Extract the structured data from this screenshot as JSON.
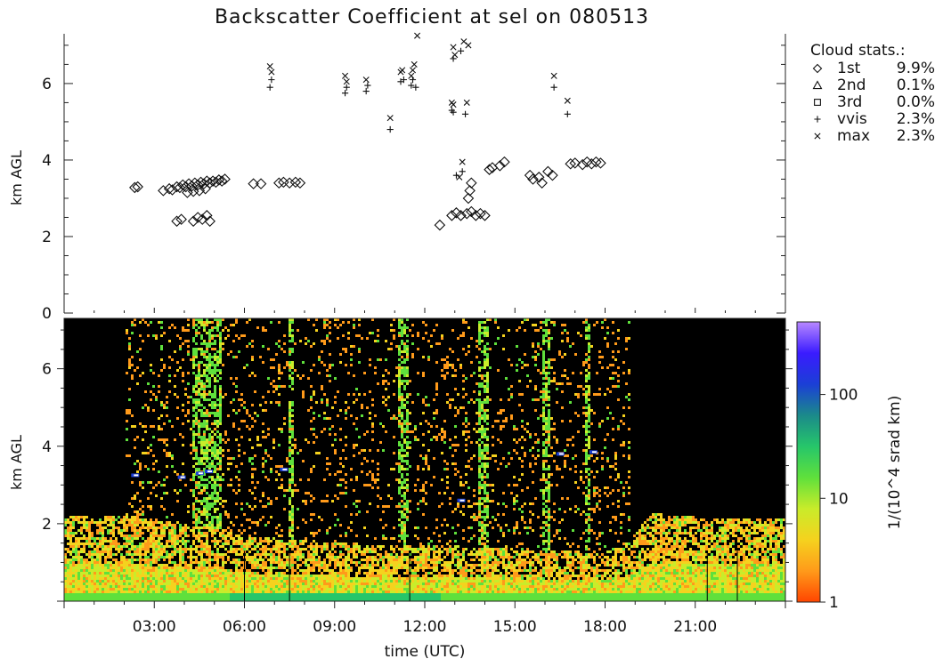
{
  "chart_data": [
    {
      "type": "scatter",
      "title": "Backscatter Coefficient at sel on 080513",
      "ylabel": "km AGL",
      "xlim": [
        0,
        24
      ],
      "ylim": [
        0,
        7.3
      ],
      "y_ticks": [
        {
          "v": 0,
          "label": "0"
        },
        {
          "v": 2,
          "label": "2"
        },
        {
          "v": 4,
          "label": "4"
        },
        {
          "v": 6,
          "label": "6"
        }
      ],
      "legend_title": "Cloud stats.:",
      "legend": [
        {
          "marker": "diamond",
          "name": "1st",
          "value": "9.9%"
        },
        {
          "marker": "triangle",
          "name": "2nd",
          "value": "0.1%"
        },
        {
          "marker": "square",
          "name": "3rd",
          "value": "0.0%"
        },
        {
          "marker": "plus",
          "name": "vvis",
          "value": "2.3%"
        },
        {
          "marker": "x",
          "name": "max",
          "value": "2.3%"
        }
      ],
      "series": [
        {
          "name": "1st",
          "marker": "diamond",
          "points": [
            [
              2.35,
              3.28
            ],
            [
              2.45,
              3.3
            ],
            [
              3.3,
              3.2
            ],
            [
              3.5,
              3.25
            ],
            [
              3.6,
              3.22
            ],
            [
              3.75,
              3.3
            ],
            [
              3.85,
              3.28
            ],
            [
              3.95,
              3.35
            ],
            [
              4.05,
              3.3
            ],
            [
              4.15,
              3.38
            ],
            [
              4.25,
              3.32
            ],
            [
              4.35,
              3.4
            ],
            [
              4.45,
              3.35
            ],
            [
              4.55,
              3.42
            ],
            [
              4.65,
              3.38
            ],
            [
              4.75,
              3.45
            ],
            [
              4.85,
              3.4
            ],
            [
              4.95,
              3.45
            ],
            [
              5.05,
              3.42
            ],
            [
              5.15,
              3.48
            ],
            [
              5.25,
              3.45
            ],
            [
              5.35,
              3.5
            ],
            [
              4.1,
              3.15
            ],
            [
              4.3,
              3.18
            ],
            [
              4.5,
              3.2
            ],
            [
              4.7,
              3.25
            ],
            [
              3.75,
              2.4
            ],
            [
              3.9,
              2.45
            ],
            [
              4.3,
              2.4
            ],
            [
              4.45,
              2.5
            ],
            [
              4.6,
              2.45
            ],
            [
              4.75,
              2.55
            ],
            [
              4.85,
              2.4
            ],
            [
              6.3,
              3.38
            ],
            [
              6.55,
              3.38
            ],
            [
              7.15,
              3.4
            ],
            [
              7.3,
              3.42
            ],
            [
              7.5,
              3.4
            ],
            [
              7.7,
              3.42
            ],
            [
              7.85,
              3.4
            ],
            [
              12.5,
              2.3
            ],
            [
              12.9,
              2.55
            ],
            [
              13.05,
              2.62
            ],
            [
              13.2,
              2.55
            ],
            [
              13.4,
              2.6
            ],
            [
              13.55,
              2.65
            ],
            [
              13.7,
              2.55
            ],
            [
              13.85,
              2.6
            ],
            [
              14.0,
              2.55
            ],
            [
              13.45,
              3.0
            ],
            [
              13.5,
              3.2
            ],
            [
              13.55,
              3.4
            ],
            [
              14.15,
              3.75
            ],
            [
              14.25,
              3.8
            ],
            [
              14.5,
              3.85
            ],
            [
              14.65,
              3.95
            ],
            [
              15.5,
              3.6
            ],
            [
              15.6,
              3.5
            ],
            [
              15.8,
              3.55
            ],
            [
              15.9,
              3.4
            ],
            [
              16.1,
              3.7
            ],
            [
              16.25,
              3.6
            ],
            [
              16.85,
              3.9
            ],
            [
              17.0,
              3.92
            ],
            [
              17.25,
              3.88
            ],
            [
              17.4,
              3.95
            ],
            [
              17.55,
              3.9
            ],
            [
              17.7,
              3.95
            ],
            [
              17.85,
              3.92
            ]
          ]
        },
        {
          "name": "vvis",
          "marker": "plus",
          "points": [
            [
              6.85,
              5.9
            ],
            [
              6.9,
              6.1
            ],
            [
              9.35,
              5.75
            ],
            [
              9.4,
              5.9
            ],
            [
              10.05,
              5.8
            ],
            [
              10.1,
              5.95
            ],
            [
              10.85,
              4.8
            ],
            [
              11.2,
              6.05
            ],
            [
              11.3,
              6.1
            ],
            [
              11.55,
              5.95
            ],
            [
              11.6,
              6.1
            ],
            [
              11.7,
              5.9
            ],
            [
              12.9,
              5.3
            ],
            [
              12.95,
              5.25
            ],
            [
              12.95,
              6.65
            ],
            [
              13.05,
              3.6
            ],
            [
              13.2,
              6.85
            ],
            [
              13.25,
              3.7
            ],
            [
              13.35,
              5.2
            ],
            [
              16.3,
              5.9
            ],
            [
              16.75,
              5.2
            ]
          ]
        },
        {
          "name": "max",
          "marker": "x",
          "points": [
            [
              6.85,
              6.45
            ],
            [
              6.9,
              6.3
            ],
            [
              9.35,
              6.2
            ],
            [
              9.4,
              6.05
            ],
            [
              10.05,
              6.1
            ],
            [
              10.85,
              5.1
            ],
            [
              11.2,
              6.3
            ],
            [
              11.25,
              6.35
            ],
            [
              11.55,
              6.2
            ],
            [
              11.6,
              6.35
            ],
            [
              11.65,
              6.5
            ],
            [
              11.75,
              7.25
            ],
            [
              12.9,
              5.5
            ],
            [
              12.95,
              5.45
            ],
            [
              12.95,
              6.95
            ],
            [
              13.0,
              6.75
            ],
            [
              13.15,
              3.55
            ],
            [
              13.25,
              3.95
            ],
            [
              13.3,
              7.1
            ],
            [
              13.45,
              7.0
            ],
            [
              13.4,
              5.5
            ],
            [
              16.3,
              6.2
            ],
            [
              16.75,
              5.55
            ]
          ]
        }
      ]
    },
    {
      "type": "heatmap",
      "xlabel": "time (UTC)",
      "ylabel": "km AGL",
      "xlim": [
        0,
        24
      ],
      "ylim": [
        0,
        7.3
      ],
      "x_ticks": [
        {
          "v": 3,
          "label": "03:00"
        },
        {
          "v": 6,
          "label": "06:00"
        },
        {
          "v": 9,
          "label": "09:00"
        },
        {
          "v": 12,
          "label": "12:00"
        },
        {
          "v": 15,
          "label": "15:00"
        },
        {
          "v": 18,
          "label": "18:00"
        },
        {
          "v": 21,
          "label": "21:00"
        }
      ],
      "y_ticks": [
        {
          "v": 2,
          "label": "2"
        },
        {
          "v": 4,
          "label": "4"
        },
        {
          "v": 6,
          "label": "6"
        }
      ],
      "colorbar": {
        "label": "1/(10^4 srad km)",
        "scale": "log",
        "range": [
          1,
          500
        ],
        "ticks": [
          {
            "v": 1,
            "label": "1"
          },
          {
            "v": 10,
            "label": "10"
          },
          {
            "v": 100,
            "label": "100"
          }
        ],
        "colors": [
          "#ff4500",
          "#ff9a1a",
          "#f5d21e",
          "#c9ec2a",
          "#5fe03c",
          "#26c66a",
          "#1b8a8a",
          "#1b3fd6",
          "#3a1bff",
          "#b888ff"
        ]
      },
      "boundary_layer_top_km": [
        [
          0,
          2.2
        ],
        [
          2,
          2.25
        ],
        [
          4,
          2.0
        ],
        [
          5.2,
          1.9
        ],
        [
          6,
          1.7
        ],
        [
          8,
          1.6
        ],
        [
          10,
          1.5
        ],
        [
          12,
          1.5
        ],
        [
          14,
          1.4
        ],
        [
          16,
          1.35
        ],
        [
          18,
          1.3
        ],
        [
          18.8,
          1.6
        ],
        [
          19.5,
          2.3
        ],
        [
          21,
          2.2
        ],
        [
          24,
          2.2
        ]
      ],
      "cloud_band_hours": [
        [
          4.2,
          5.2
        ],
        [
          7.4,
          7.6
        ],
        [
          11.1,
          11.4
        ],
        [
          13.7,
          14.1
        ],
        [
          15.9,
          16.1
        ],
        [
          17.3,
          17.5
        ]
      ]
    }
  ]
}
